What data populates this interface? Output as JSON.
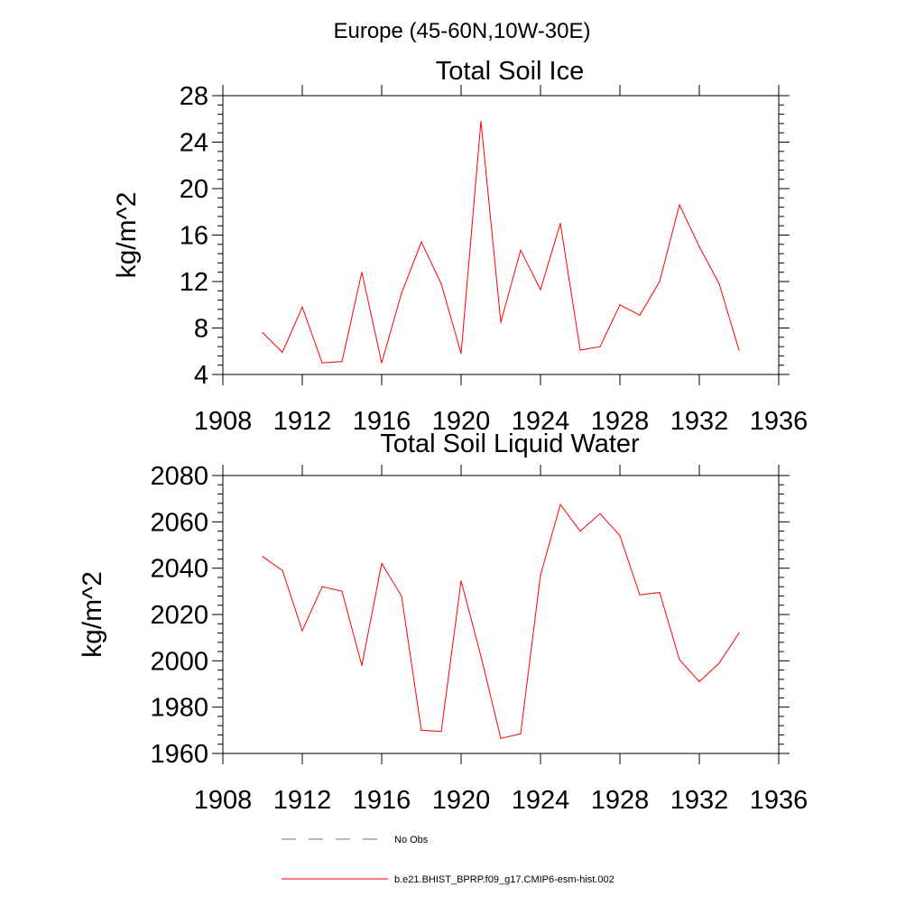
{
  "suptitle": "Europe (45-60N,10W-30E)",
  "chart_data": [
    {
      "type": "line",
      "title": "Total Soil Ice",
      "xlabel": "",
      "ylabel": "kg/m^2",
      "xlim": [
        1908,
        1936
      ],
      "ylim": [
        4,
        28
      ],
      "xticks": [
        "1908",
        "1912",
        "1916",
        "1920",
        "1924",
        "1928",
        "1932",
        "1936"
      ],
      "yticks": [
        "4",
        "8",
        "12",
        "16",
        "20",
        "24",
        "28"
      ],
      "x": [
        1910,
        1911,
        1912,
        1913,
        1914,
        1915,
        1916,
        1917,
        1918,
        1919,
        1920,
        1921,
        1922,
        1923,
        1924,
        1925,
        1926,
        1927,
        1928,
        1929,
        1930,
        1931,
        1932,
        1933,
        1934
      ],
      "series": [
        {
          "name": "b.e21.BHIST_BPRP.f09_g17.CMIP6-esm-hist.002",
          "color": "#ff0000",
          "values": [
            7.6,
            5.9,
            9.8,
            5.0,
            5.1,
            12.8,
            5.0,
            11.0,
            15.4,
            11.8,
            5.8,
            25.8,
            8.5,
            14.7,
            11.3,
            17.0,
            6.1,
            6.4,
            10.0,
            9.1,
            12.0,
            18.6,
            15.0,
            11.8,
            6.1
          ]
        }
      ]
    },
    {
      "type": "line",
      "title": "Total Soil Liquid Water",
      "xlabel": "",
      "ylabel": "kg/m^2",
      "xlim": [
        1908,
        1936
      ],
      "ylim": [
        1960,
        2080
      ],
      "xticks": [
        "1908",
        "1912",
        "1916",
        "1920",
        "1924",
        "1928",
        "1932",
        "1936"
      ],
      "yticks": [
        "1960",
        "1980",
        "2000",
        "2020",
        "2040",
        "2060",
        "2080"
      ],
      "x": [
        1910,
        1911,
        1912,
        1913,
        1914,
        1915,
        1916,
        1917,
        1918,
        1919,
        1920,
        1921,
        1922,
        1923,
        1924,
        1925,
        1926,
        1927,
        1928,
        1929,
        1930,
        1931,
        1932,
        1933,
        1934
      ],
      "series": [
        {
          "name": "b.e21.BHIST_BPRP.f09_g17.CMIP6-esm-hist.002",
          "color": "#ff0000",
          "values": [
            2045,
            2039,
            2013,
            2032,
            2030,
            1998,
            2042,
            2028,
            1970,
            1969.5,
            2034.5,
            2002,
            1966.5,
            1968.5,
            2037,
            2067.5,
            2056,
            2063.5,
            2054,
            2028.5,
            2029.5,
            2000.5,
            1991,
            1999,
            2012
          ]
        }
      ]
    }
  ],
  "legend": {
    "placement": "bottom-left",
    "items": [
      {
        "label": "No Obs",
        "color": "#6b6bbb",
        "style": "dashed"
      },
      {
        "label": "b.e21.BHIST_BPRP.f09_g17.CMIP6-esm-hist.002",
        "color": "#ff0000",
        "style": "solid"
      }
    ]
  }
}
